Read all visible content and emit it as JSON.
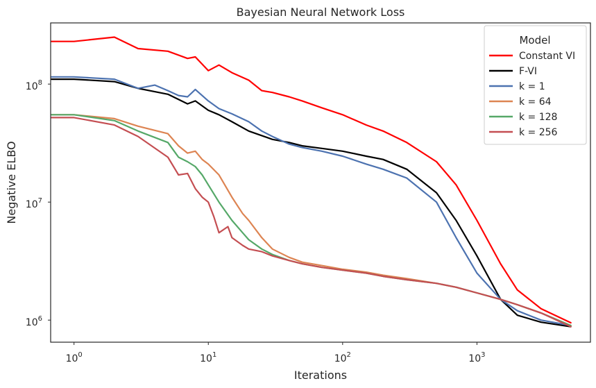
{
  "chart_data": {
    "type": "line",
    "title": "Bayesian Neural Network Loss",
    "xlabel": "Iterations",
    "ylabel": "Negative ELBO",
    "xscale": "log",
    "yscale": "log",
    "xlim": [
      0.67,
      7000
    ],
    "ylim": [
      650000,
      330000000
    ],
    "grid": false,
    "legend": {
      "title": "Model",
      "placement": "top-right"
    },
    "x_ticks": [
      {
        "value": 1,
        "base": "10",
        "exp": "0"
      },
      {
        "value": 10,
        "base": "10",
        "exp": "1"
      },
      {
        "value": 100,
        "base": "10",
        "exp": "2"
      },
      {
        "value": 1000,
        "base": "10",
        "exp": "3"
      }
    ],
    "y_ticks": [
      {
        "value": 1000000,
        "base": "10",
        "exp": "6"
      },
      {
        "value": 10000000,
        "base": "10",
        "exp": "7"
      },
      {
        "value": 100000000,
        "base": "10",
        "exp": "8"
      }
    ],
    "series": [
      {
        "name": "Constant VI",
        "color": "#ff0000",
        "x": [
          0.68,
          1,
          2,
          3,
          5,
          7,
          8,
          10,
          12,
          15,
          20,
          25,
          30,
          40,
          50,
          70,
          100,
          150,
          200,
          300,
          500,
          700,
          1000,
          1500,
          2000,
          3000,
          5000
        ],
        "y": [
          230000000,
          230000000,
          250000000,
          200000000,
          190000000,
          165000000,
          170000000,
          130000000,
          145000000,
          125000000,
          108000000,
          88000000,
          85000000,
          78000000,
          72000000,
          63000000,
          55000000,
          45000000,
          40000000,
          32000000,
          22000000,
          14000000,
          7000000,
          3000000,
          1800000,
          1250000,
          950000
        ]
      },
      {
        "name": "F-VI",
        "color": "#000000",
        "x": [
          0.68,
          1,
          2,
          3,
          5,
          7,
          8,
          10,
          12,
          15,
          20,
          30,
          40,
          50,
          70,
          100,
          150,
          200,
          300,
          500,
          700,
          1000,
          1500,
          2000,
          3000,
          5000
        ],
        "y": [
          110000000,
          110000000,
          105000000,
          92000000,
          82000000,
          68000000,
          72000000,
          60000000,
          55000000,
          48000000,
          40000000,
          34000000,
          32000000,
          30000000,
          28500000,
          27000000,
          24500000,
          23000000,
          19000000,
          12000000,
          7000000,
          3500000,
          1500000,
          1100000,
          960000,
          880000
        ]
      },
      {
        "name": "k = 1",
        "color": "#4c72b0",
        "x": [
          0.68,
          1,
          2,
          3,
          4,
          5,
          6,
          7,
          8,
          10,
          12,
          15,
          20,
          25,
          30,
          40,
          50,
          70,
          100,
          150,
          200,
          300,
          500,
          700,
          1000,
          1500,
          2000,
          3000,
          5000
        ],
        "y": [
          115000000,
          115000000,
          110000000,
          92000000,
          98000000,
          88000000,
          80000000,
          78000000,
          90000000,
          72000000,
          62000000,
          56000000,
          48000000,
          40000000,
          36000000,
          31000000,
          29000000,
          27000000,
          24500000,
          21000000,
          19000000,
          16000000,
          10000000,
          5000000,
          2500000,
          1500000,
          1200000,
          1000000,
          900000
        ]
      },
      {
        "name": "k = 64",
        "color": "#dd8452",
        "x": [
          0.68,
          1,
          2,
          3,
          5,
          6,
          7,
          8,
          9,
          10,
          12,
          15,
          18,
          20,
          25,
          30,
          40,
          50,
          70,
          100,
          150,
          200,
          300,
          500,
          700,
          1000,
          1500,
          2000,
          3000,
          5000
        ],
        "y": [
          55000000,
          55000000,
          51000000,
          44000000,
          38000000,
          30000000,
          26000000,
          27000000,
          23000000,
          21000000,
          17000000,
          11000000,
          8000000,
          7000000,
          5000000,
          4000000,
          3400000,
          3100000,
          2900000,
          2700000,
          2550000,
          2400000,
          2250000,
          2050000,
          1900000,
          1700000,
          1500000,
          1350000,
          1150000,
          900000
        ]
      },
      {
        "name": "k = 128",
        "color": "#55a868",
        "x": [
          0.68,
          1,
          2,
          3,
          5,
          6,
          7,
          8,
          9,
          10,
          12,
          15,
          18,
          20,
          25,
          30,
          40,
          50,
          70,
          100,
          150,
          200,
          300,
          500,
          700,
          1000,
          1500,
          2000,
          3000,
          5000
        ],
        "y": [
          55000000,
          55000000,
          49000000,
          40000000,
          32000000,
          24000000,
          22000000,
          20000000,
          17000000,
          14000000,
          10000000,
          7000000,
          5500000,
          4800000,
          4000000,
          3600000,
          3200000,
          3000000,
          2800000,
          2650000,
          2500000,
          2350000,
          2200000,
          2050000,
          1900000,
          1700000,
          1500000,
          1350000,
          1150000,
          900000
        ]
      },
      {
        "name": "k = 256",
        "color": "#c44e52",
        "x": [
          0.68,
          1,
          2,
          3,
          5,
          6,
          7,
          8,
          9,
          10,
          11,
          12,
          14,
          15,
          18,
          20,
          25,
          30,
          40,
          50,
          70,
          100,
          150,
          200,
          300,
          500,
          700,
          1000,
          1500,
          2000,
          3000,
          5000
        ],
        "y": [
          52000000,
          52000000,
          45000000,
          36000000,
          24000000,
          17000000,
          17500000,
          13000000,
          11000000,
          10000000,
          7500000,
          5500000,
          6200000,
          5000000,
          4300000,
          4000000,
          3800000,
          3500000,
          3200000,
          3000000,
          2800000,
          2650000,
          2500000,
          2350000,
          2200000,
          2050000,
          1900000,
          1700000,
          1500000,
          1350000,
          1150000,
          880000
        ]
      }
    ]
  }
}
